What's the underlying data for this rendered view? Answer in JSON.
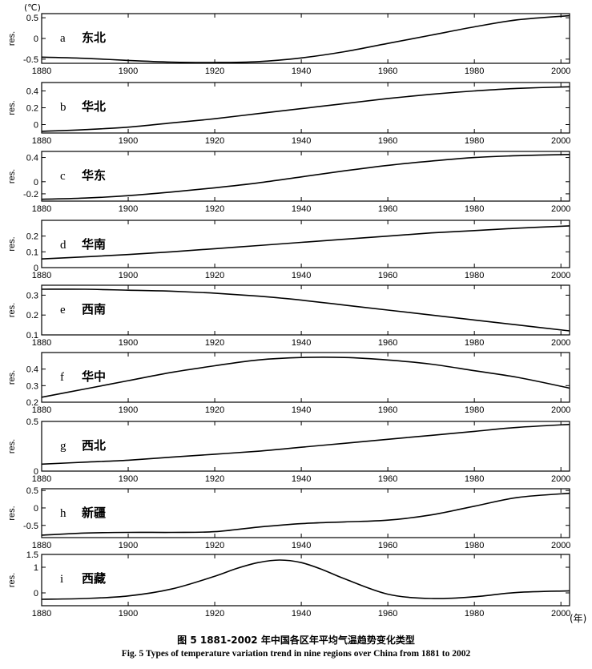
{
  "figure": {
    "unit_label": "(℃)",
    "x_unit_label": "(年)",
    "caption_cn": "图 5  1881-2002 年中国各区年平均气温趋势变化类型",
    "caption_en": "Fig. 5  Types of temperature variation trend in nine regions over China from 1881 to 2002"
  },
  "chart_data": [
    {
      "type": "line",
      "panel_letter": "a",
      "region": "东北",
      "ylabel": "res.",
      "xlim": [
        1880,
        2002
      ],
      "ylim": [
        -0.6,
        0.6
      ],
      "yticks": [
        "0.5",
        "0",
        "-0.5"
      ],
      "ytick_values": [
        0.5,
        0,
        -0.5
      ],
      "xticks": [
        1880,
        1900,
        1920,
        1940,
        1960,
        1980,
        2000
      ],
      "x": [
        1880,
        1890,
        1900,
        1910,
        1920,
        1930,
        1940,
        1950,
        1960,
        1970,
        1980,
        1990,
        2002
      ],
      "values": [
        -0.45,
        -0.48,
        -0.53,
        -0.57,
        -0.58,
        -0.56,
        -0.47,
        -0.32,
        -0.12,
        0.08,
        0.28,
        0.45,
        0.55
      ]
    },
    {
      "type": "line",
      "panel_letter": "b",
      "region": "华北",
      "ylabel": "res.",
      "xlim": [
        1880,
        2002
      ],
      "ylim": [
        -0.1,
        0.5
      ],
      "yticks": [
        "0.4",
        "0.2",
        "0"
      ],
      "ytick_values": [
        0.4,
        0.2,
        0
      ],
      "xticks": [
        1880,
        1900,
        1920,
        1940,
        1960,
        1980,
        2000
      ],
      "x": [
        1880,
        1890,
        1900,
        1910,
        1920,
        1930,
        1940,
        1950,
        1960,
        1970,
        1980,
        1990,
        2002
      ],
      "values": [
        -0.08,
        -0.06,
        -0.03,
        0.02,
        0.07,
        0.13,
        0.19,
        0.25,
        0.31,
        0.36,
        0.4,
        0.43,
        0.45
      ]
    },
    {
      "type": "line",
      "panel_letter": "c",
      "region": "华东",
      "ylabel": "res.",
      "xlim": [
        1880,
        2002
      ],
      "ylim": [
        -0.32,
        0.5
      ],
      "yticks": [
        "0.4",
        "0",
        "-0.2"
      ],
      "ytick_values": [
        0.4,
        0,
        -0.2
      ],
      "xticks": [
        1880,
        1900,
        1920,
        1940,
        1960,
        1980,
        2000
      ],
      "x": [
        1880,
        1890,
        1900,
        1910,
        1920,
        1930,
        1940,
        1950,
        1960,
        1970,
        1980,
        1990,
        2002
      ],
      "values": [
        -0.29,
        -0.27,
        -0.23,
        -0.17,
        -0.1,
        -0.02,
        0.08,
        0.18,
        0.27,
        0.34,
        0.4,
        0.43,
        0.45
      ]
    },
    {
      "type": "line",
      "panel_letter": "d",
      "region": "华南",
      "ylabel": "res.",
      "xlim": [
        1880,
        2002
      ],
      "ylim": [
        0,
        0.3
      ],
      "yticks": [
        "0.2",
        "0.1",
        "0"
      ],
      "ytick_values": [
        0.2,
        0.1,
        0
      ],
      "xticks": [
        1880,
        1900,
        1920,
        1940,
        1960,
        1980,
        2000
      ],
      "x": [
        1880,
        1890,
        1900,
        1910,
        1920,
        1930,
        1940,
        1950,
        1960,
        1970,
        1980,
        1990,
        2002
      ],
      "values": [
        0.055,
        0.068,
        0.083,
        0.1,
        0.12,
        0.14,
        0.16,
        0.18,
        0.2,
        0.22,
        0.235,
        0.25,
        0.265
      ]
    },
    {
      "type": "line",
      "panel_letter": "e",
      "region": "西南",
      "ylabel": "res.",
      "xlim": [
        1880,
        2002
      ],
      "ylim": [
        0.1,
        0.35
      ],
      "yticks": [
        "0.3",
        "0.2",
        "0.1"
      ],
      "ytick_values": [
        0.3,
        0.2,
        0.1
      ],
      "xticks": [
        1880,
        1900,
        1920,
        1940,
        1960,
        1980,
        2000
      ],
      "x": [
        1880,
        1890,
        1900,
        1910,
        1920,
        1930,
        1940,
        1950,
        1960,
        1970,
        1980,
        1990,
        2002
      ],
      "values": [
        0.33,
        0.33,
        0.325,
        0.32,
        0.31,
        0.295,
        0.275,
        0.25,
        0.225,
        0.2,
        0.175,
        0.15,
        0.12
      ]
    },
    {
      "type": "line",
      "panel_letter": "f",
      "region": "华中",
      "ylabel": "res.",
      "xlim": [
        1880,
        2002
      ],
      "ylim": [
        0.2,
        0.5
      ],
      "yticks": [
        "0.4",
        "0.3",
        "0.2"
      ],
      "ytick_values": [
        0.4,
        0.3,
        0.2
      ],
      "xticks": [
        1880,
        1900,
        1920,
        1940,
        1960,
        1980,
        2000
      ],
      "x": [
        1880,
        1890,
        1900,
        1910,
        1920,
        1930,
        1940,
        1950,
        1960,
        1970,
        1980,
        1990,
        2002
      ],
      "values": [
        0.23,
        0.28,
        0.33,
        0.38,
        0.42,
        0.455,
        0.47,
        0.47,
        0.455,
        0.43,
        0.39,
        0.35,
        0.285
      ]
    },
    {
      "type": "line",
      "panel_letter": "g",
      "region": "西北",
      "ylabel": "res.",
      "xlim": [
        1880,
        2002
      ],
      "ylim": [
        0,
        0.5
      ],
      "yticks": [
        "0.5",
        "0"
      ],
      "ytick_values": [
        0.5,
        0
      ],
      "xticks": [
        1880,
        1900,
        1920,
        1940,
        1960,
        1980,
        2000
      ],
      "x": [
        1880,
        1890,
        1900,
        1910,
        1920,
        1930,
        1940,
        1950,
        1960,
        1970,
        1980,
        1990,
        2002
      ],
      "values": [
        0.07,
        0.09,
        0.11,
        0.14,
        0.17,
        0.2,
        0.24,
        0.28,
        0.32,
        0.36,
        0.4,
        0.44,
        0.47
      ]
    },
    {
      "type": "line",
      "panel_letter": "h",
      "region": "新疆",
      "ylabel": "res.",
      "xlim": [
        1880,
        2002
      ],
      "ylim": [
        -0.85,
        0.55
      ],
      "yticks": [
        "0.5",
        "0",
        "-0.5"
      ],
      "ytick_values": [
        0.5,
        0,
        -0.5
      ],
      "xticks": [
        1880,
        1900,
        1920,
        1940,
        1960,
        1980,
        2000
      ],
      "x": [
        1880,
        1890,
        1900,
        1910,
        1920,
        1930,
        1940,
        1950,
        1960,
        1970,
        1980,
        1990,
        2002
      ],
      "values": [
        -0.78,
        -0.72,
        -0.7,
        -0.7,
        -0.68,
        -0.55,
        -0.45,
        -0.4,
        -0.35,
        -0.2,
        0.05,
        0.3,
        0.42
      ]
    },
    {
      "type": "line",
      "panel_letter": "i",
      "region": "西藏",
      "ylabel": "res.",
      "xlim": [
        1880,
        2002
      ],
      "ylim": [
        -0.5,
        1.5
      ],
      "yticks": [
        "1.5",
        "1",
        "0"
      ],
      "ytick_values": [
        1.5,
        1,
        0
      ],
      "xticks": [
        1880,
        1900,
        1920,
        1940,
        1960,
        1980,
        2000
      ],
      "x": [
        1880,
        1890,
        1900,
        1910,
        1920,
        1925,
        1930,
        1935,
        1940,
        1945,
        1950,
        1960,
        1970,
        1980,
        1990,
        2002
      ],
      "values": [
        -0.25,
        -0.22,
        -0.12,
        0.15,
        0.65,
        0.95,
        1.18,
        1.28,
        1.18,
        0.9,
        0.55,
        -0.05,
        -0.22,
        -0.15,
        0.02,
        0.08
      ]
    }
  ]
}
